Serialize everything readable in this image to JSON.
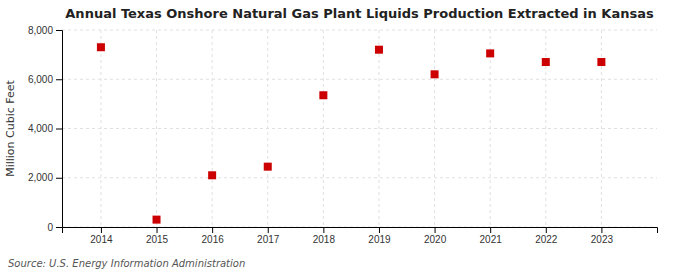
{
  "chart_data": {
    "type": "scatter",
    "title": "Annual Texas Onshore Natural Gas Plant Liquids Production Extracted in Kansas",
    "ylabel": "Million Cubic Feet",
    "source": "Source: U.S. Energy Information Administration",
    "x": [
      2014,
      2015,
      2016,
      2017,
      2018,
      2019,
      2020,
      2021,
      2022,
      2023
    ],
    "values": [
      7300,
      300,
      2100,
      2450,
      5350,
      7200,
      6200,
      7050,
      6700,
      6700
    ],
    "color": "#cc0000",
    "marker": "square",
    "xlim": [
      2013.3,
      2024.0
    ],
    "xticks": [
      2014,
      2015,
      2016,
      2017,
      2018,
      2019,
      2020,
      2021,
      2022,
      2023
    ],
    "ylim": [
      0,
      8000
    ],
    "yticks": [
      0,
      {
        "value": 2000,
        "label": "2,000"
      },
      {
        "value": 4000,
        "label": "4,000"
      },
      {
        "value": 6000,
        "label": "6,000"
      },
      {
        "value": 8000,
        "label": "8,000"
      }
    ],
    "grid": true
  }
}
